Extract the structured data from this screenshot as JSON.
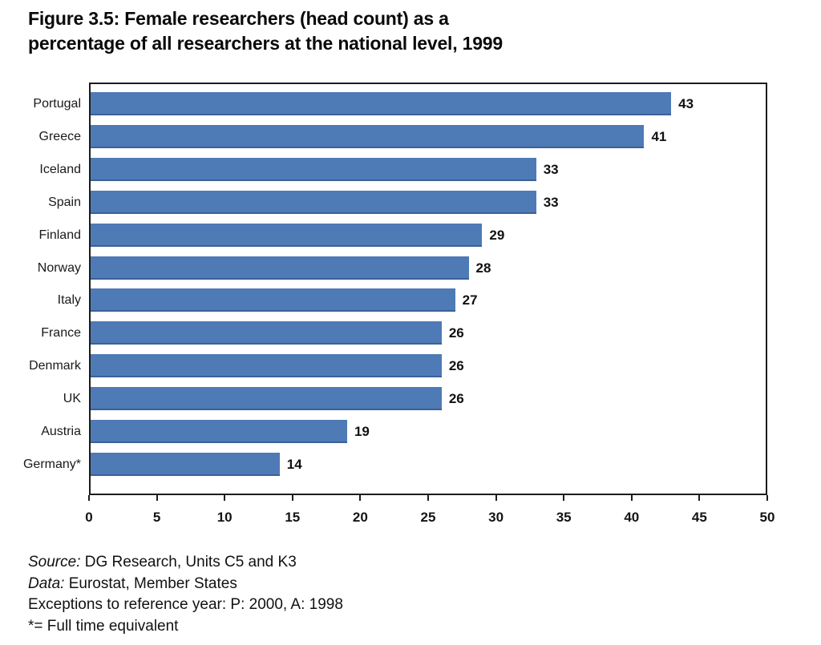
{
  "figure": {
    "title_line1": "Figure 3.5: Female researchers (head count) as a",
    "title_line2": "percentage of all researchers at the national level, 1999"
  },
  "chart_data": {
    "type": "bar",
    "orientation": "horizontal",
    "title": "Figure 3.5: Female researchers (head count) as a percentage of all researchers at the national level, 1999",
    "categories": [
      "Portugal",
      "Greece",
      "Iceland",
      "Spain",
      "Finland",
      "Norway",
      "Italy",
      "France",
      "Denmark",
      "UK",
      "Austria",
      "Germany*"
    ],
    "values": [
      43,
      41,
      33,
      33,
      29,
      28,
      27,
      26,
      26,
      26,
      19,
      14
    ],
    "xlabel": "",
    "ylabel": "",
    "xlim": [
      0,
      50
    ],
    "xticks": [
      0,
      5,
      10,
      15,
      20,
      25,
      30,
      35,
      40,
      45,
      50
    ],
    "grid": false,
    "legend": null,
    "value_labels_shown": true,
    "bar_color": "#4e7ab6",
    "frame_color": "#1c1c1c"
  },
  "footer": {
    "source_label": "Source:",
    "source_text": " DG Research, Units C5 and K3",
    "data_label": "Data:",
    "data_text": " Eurostat, Member States",
    "exceptions_line": "Exceptions to reference year: P: 2000, A: 1998",
    "fte_note": "*= Full time equivalent"
  }
}
